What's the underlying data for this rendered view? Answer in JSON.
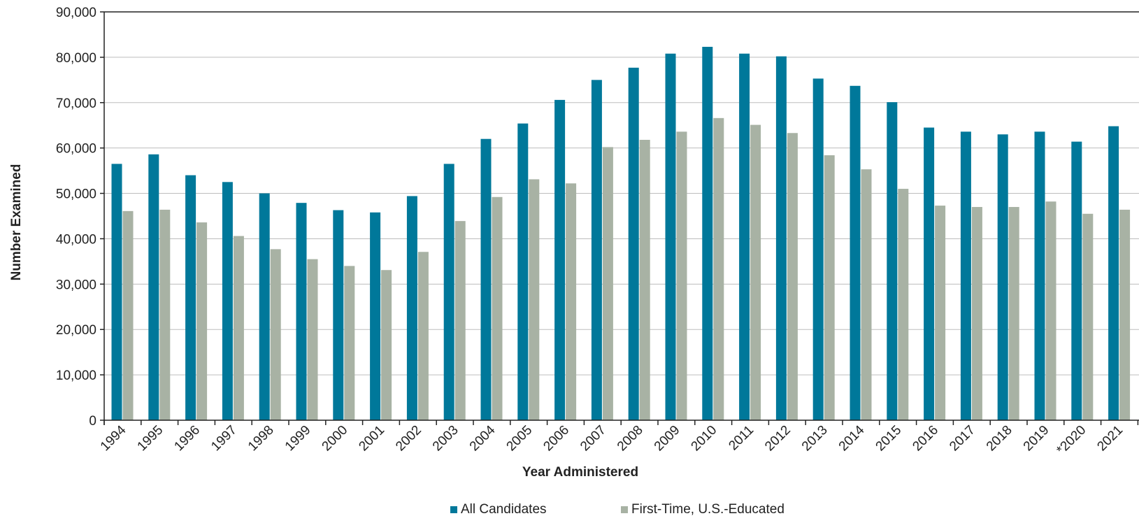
{
  "chart_data": {
    "type": "bar",
    "title": "",
    "xlabel": "Year Administered",
    "ylabel": "Number Examined",
    "ylim": [
      0,
      90000
    ],
    "yticks": [
      0,
      10000,
      20000,
      30000,
      40000,
      50000,
      60000,
      70000,
      80000,
      90000
    ],
    "ytick_labels": [
      "0",
      "10,000",
      "20,000",
      "30,000",
      "40,000",
      "50,000",
      "60,000",
      "70,000",
      "80,000",
      "90,000"
    ],
    "grid": true,
    "legend_position": "bottom",
    "categories": [
      "1994",
      "1995",
      "1996",
      "1997",
      "1998",
      "1999",
      "2000",
      "2001",
      "2002",
      "2003",
      "2004",
      "2005",
      "2006",
      "2007",
      "2008",
      "2009",
      "2010",
      "2011",
      "2012",
      "2013",
      "2014",
      "2015",
      "2016",
      "2017",
      "2018",
      "2019",
      "*2020",
      "2021"
    ],
    "series": [
      {
        "name": "All Candidates",
        "color": "#00789a",
        "values": [
          56500,
          58600,
          54000,
          52500,
          50000,
          47900,
          46300,
          45800,
          49400,
          56500,
          62000,
          65400,
          70600,
          75000,
          77700,
          80800,
          82300,
          80800,
          80200,
          75300,
          73700,
          70100,
          64500,
          63600,
          63000,
          63600,
          61400,
          64800
        ]
      },
      {
        "name": "First-Time, U.S.-Educated",
        "color": "#a8b2a4",
        "values": [
          46100,
          46400,
          43600,
          40600,
          37700,
          35500,
          34000,
          33100,
          37100,
          43900,
          49200,
          53100,
          52200,
          60200,
          61800,
          63600,
          66600,
          65100,
          63300,
          58400,
          55300,
          51000,
          47300,
          47000,
          47000,
          48200,
          45500,
          46400
        ]
      }
    ]
  }
}
